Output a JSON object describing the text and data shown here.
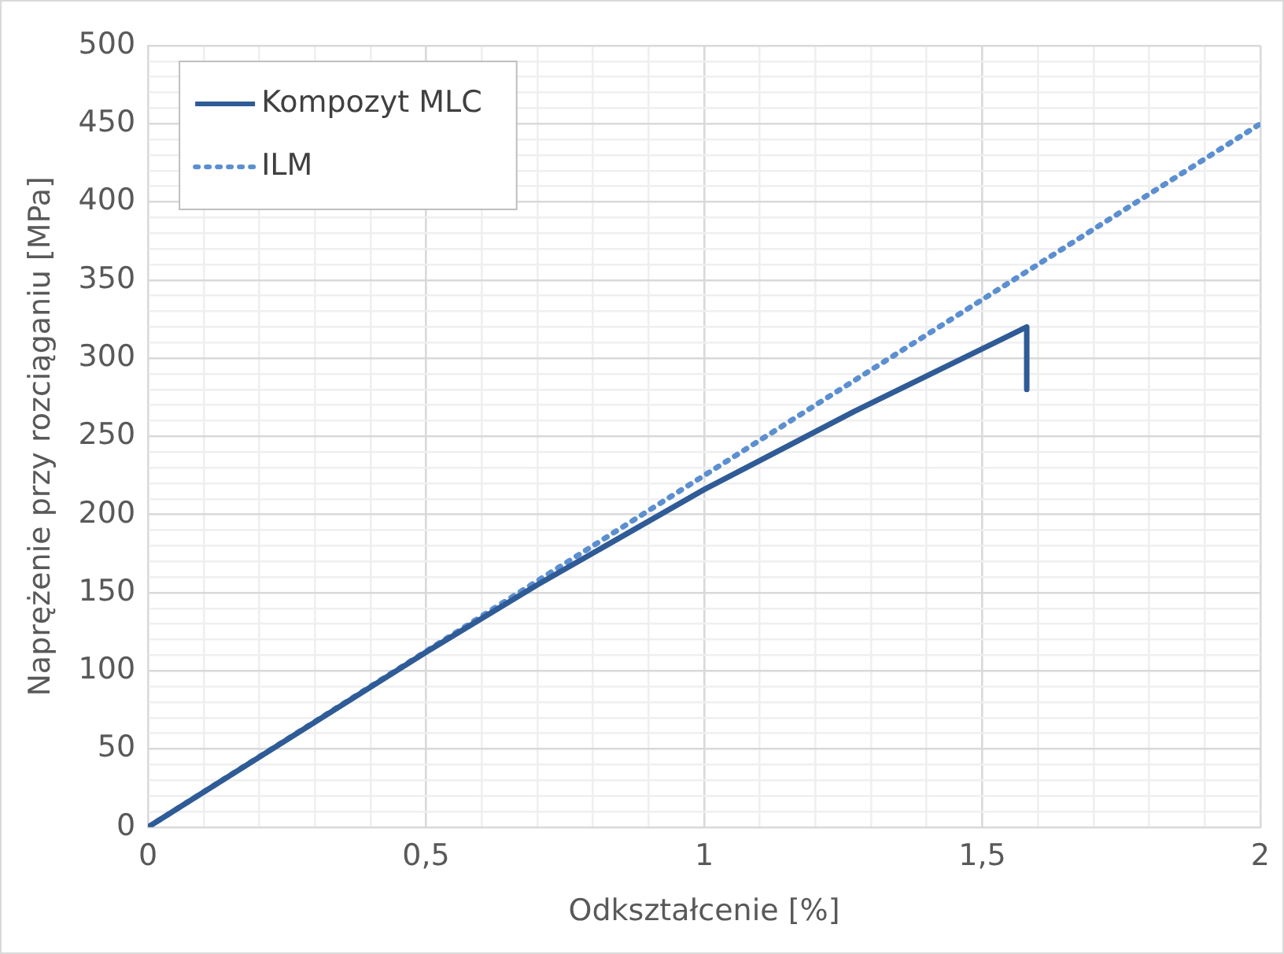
{
  "chart_data": {
    "type": "line",
    "xlabel": "Odkształcenie [%]",
    "ylabel": "Naprężenie przy rozciąganiu [MPa]",
    "xlim": [
      0,
      2
    ],
    "ylim": [
      0,
      500
    ],
    "xticks": [
      0,
      {
        "value": 0.1,
        "label": null
      },
      {
        "value": 0.2,
        "label": null
      },
      {
        "value": 0.3,
        "label": null
      },
      {
        "value": 0.4,
        "label": null
      },
      {
        "value": 0.5,
        "label": "0,5"
      },
      {
        "value": 0.6,
        "label": null
      },
      {
        "value": 0.7,
        "label": null
      },
      {
        "value": 0.8,
        "label": null
      },
      {
        "value": 0.9,
        "label": null
      },
      1,
      {
        "value": 1.1,
        "label": null
      },
      {
        "value": 1.2,
        "label": null
      },
      {
        "value": 1.3,
        "label": null
      },
      {
        "value": 1.4,
        "label": null
      },
      {
        "value": 1.5,
        "label": "1,5"
      },
      {
        "value": 1.6,
        "label": null
      },
      {
        "value": 1.7,
        "label": null
      },
      {
        "value": 1.8,
        "label": null
      },
      {
        "value": 1.9,
        "label": null
      },
      2
    ],
    "yticks": [
      0,
      {
        "value": 10,
        "label": null
      },
      {
        "value": 20,
        "label": null
      },
      {
        "value": 30,
        "label": null
      },
      {
        "value": 40,
        "label": null
      },
      50,
      {
        "value": 60,
        "label": null
      },
      {
        "value": 70,
        "label": null
      },
      {
        "value": 80,
        "label": null
      },
      {
        "value": 90,
        "label": null
      },
      100,
      {
        "value": 110,
        "label": null
      },
      {
        "value": 120,
        "label": null
      },
      {
        "value": 130,
        "label": null
      },
      {
        "value": 140,
        "label": null
      },
      150,
      {
        "value": 160,
        "label": null
      },
      {
        "value": 170,
        "label": null
      },
      {
        "value": 180,
        "label": null
      },
      {
        "value": 190,
        "label": null
      },
      200,
      {
        "value": 210,
        "label": null
      },
      {
        "value": 220,
        "label": null
      },
      {
        "value": 230,
        "label": null
      },
      {
        "value": 240,
        "label": null
      },
      250,
      {
        "value": 260,
        "label": null
      },
      {
        "value": 270,
        "label": null
      },
      {
        "value": 280,
        "label": null
      },
      {
        "value": 290,
        "label": null
      },
      300,
      {
        "value": 310,
        "label": null
      },
      {
        "value": 320,
        "label": null
      },
      {
        "value": 330,
        "label": null
      },
      {
        "value": 340,
        "label": null
      },
      350,
      {
        "value": 360,
        "label": null
      },
      {
        "value": 370,
        "label": null
      },
      {
        "value": 380,
        "label": null
      },
      {
        "value": 390,
        "label": null
      },
      400,
      {
        "value": 410,
        "label": null
      },
      {
        "value": 420,
        "label": null
      },
      {
        "value": 430,
        "label": null
      },
      {
        "value": 440,
        "label": null
      },
      450,
      {
        "value": 460,
        "label": null
      },
      {
        "value": 470,
        "label": null
      },
      {
        "value": 480,
        "label": null
      },
      {
        "value": 490,
        "label": null
      },
      500
    ],
    "grid": true,
    "legend": "top left",
    "marker": "none",
    "series": [
      {
        "name": "Kompozyt MLC",
        "color": "#2f5b96",
        "line_style": "solid",
        "x": [
          0,
          0.5,
          0.7,
          1,
          1.27,
          1.58,
          1.58
        ],
        "values": [
          0,
          112,
          155,
          216,
          266,
          320,
          280
        ]
      },
      {
        "name": "ILM",
        "color": "#5b8fd0",
        "line_style": "dotted",
        "x": [
          0,
          2
        ],
        "values": [
          0,
          450
        ]
      }
    ]
  }
}
